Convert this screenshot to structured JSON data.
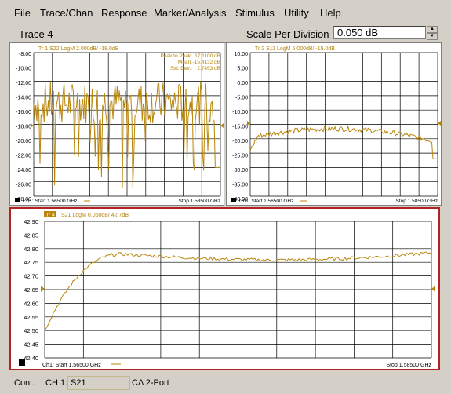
{
  "menu": [
    "File",
    "Trace/Chan",
    "Response",
    "Marker/Analysis",
    "Stimulus",
    "Utility",
    "Help"
  ],
  "toolbar": {
    "active_trace": "Trace 4",
    "entry_label": "Scale Per Division",
    "entry_value": "0.050 dB"
  },
  "windows": [
    {
      "id": "win-1",
      "trace_title": "Tr 1  S22 LogM 2.000dB/ -18.0dB",
      "y_ticks": [
        "-8.00",
        "-10.00",
        "-12.00",
        "-14.00",
        "-16.00",
        "-18.00",
        "-20.00",
        "-22.00",
        "-24.00",
        "-26.00",
        "-28.00"
      ],
      "stats": [
        {
          "label": "Peak to Peak:",
          "value": "17.1100 dB"
        },
        {
          "label": "Mean:",
          "value": "-15.4132 dB"
        },
        {
          "label": "Std. Dev.:",
          "value": "2.7453 dB"
        }
      ],
      "start_label": "Ch1: Start  1.56500 GHz",
      "stop_label": "Stop  1.58500 GHz"
    },
    {
      "id": "win-2",
      "trace_title": "Tr 2  S11 LogM 5.000dB/ -15.0dB",
      "y_ticks": [
        "10.00",
        "5.00",
        "0.00",
        "-5.00",
        "-10.00",
        "-15.00",
        "-20.00",
        "-25.00",
        "-30.00",
        "-35.00",
        "-40.00"
      ],
      "start_label": "Ch1: Start  1.56500 GHz",
      "stop_label": "Stop  1.58500 GHz"
    },
    {
      "id": "win-4",
      "trace_badge": "Tr 4",
      "trace_title": "S21 LogM 0.050dB/ 42.7dB",
      "y_ticks": [
        "42.90",
        "42.85",
        "42.80",
        "42.75",
        "42.70",
        "42.65",
        "42.60",
        "42.55",
        "42.50",
        "42.45",
        "42.40"
      ],
      "start_label": "Ch1: Start  1.56500 GHz",
      "stop_label": "Stop  1.58500 GHz"
    }
  ],
  "status": {
    "mode": "Cont.",
    "channel": "CH 1:",
    "param": "S21",
    "cal": "CΔ 2-Port"
  },
  "colors": {
    "trace": "#b8860b",
    "grid": "#000000",
    "active_border": "#b22222"
  }
}
